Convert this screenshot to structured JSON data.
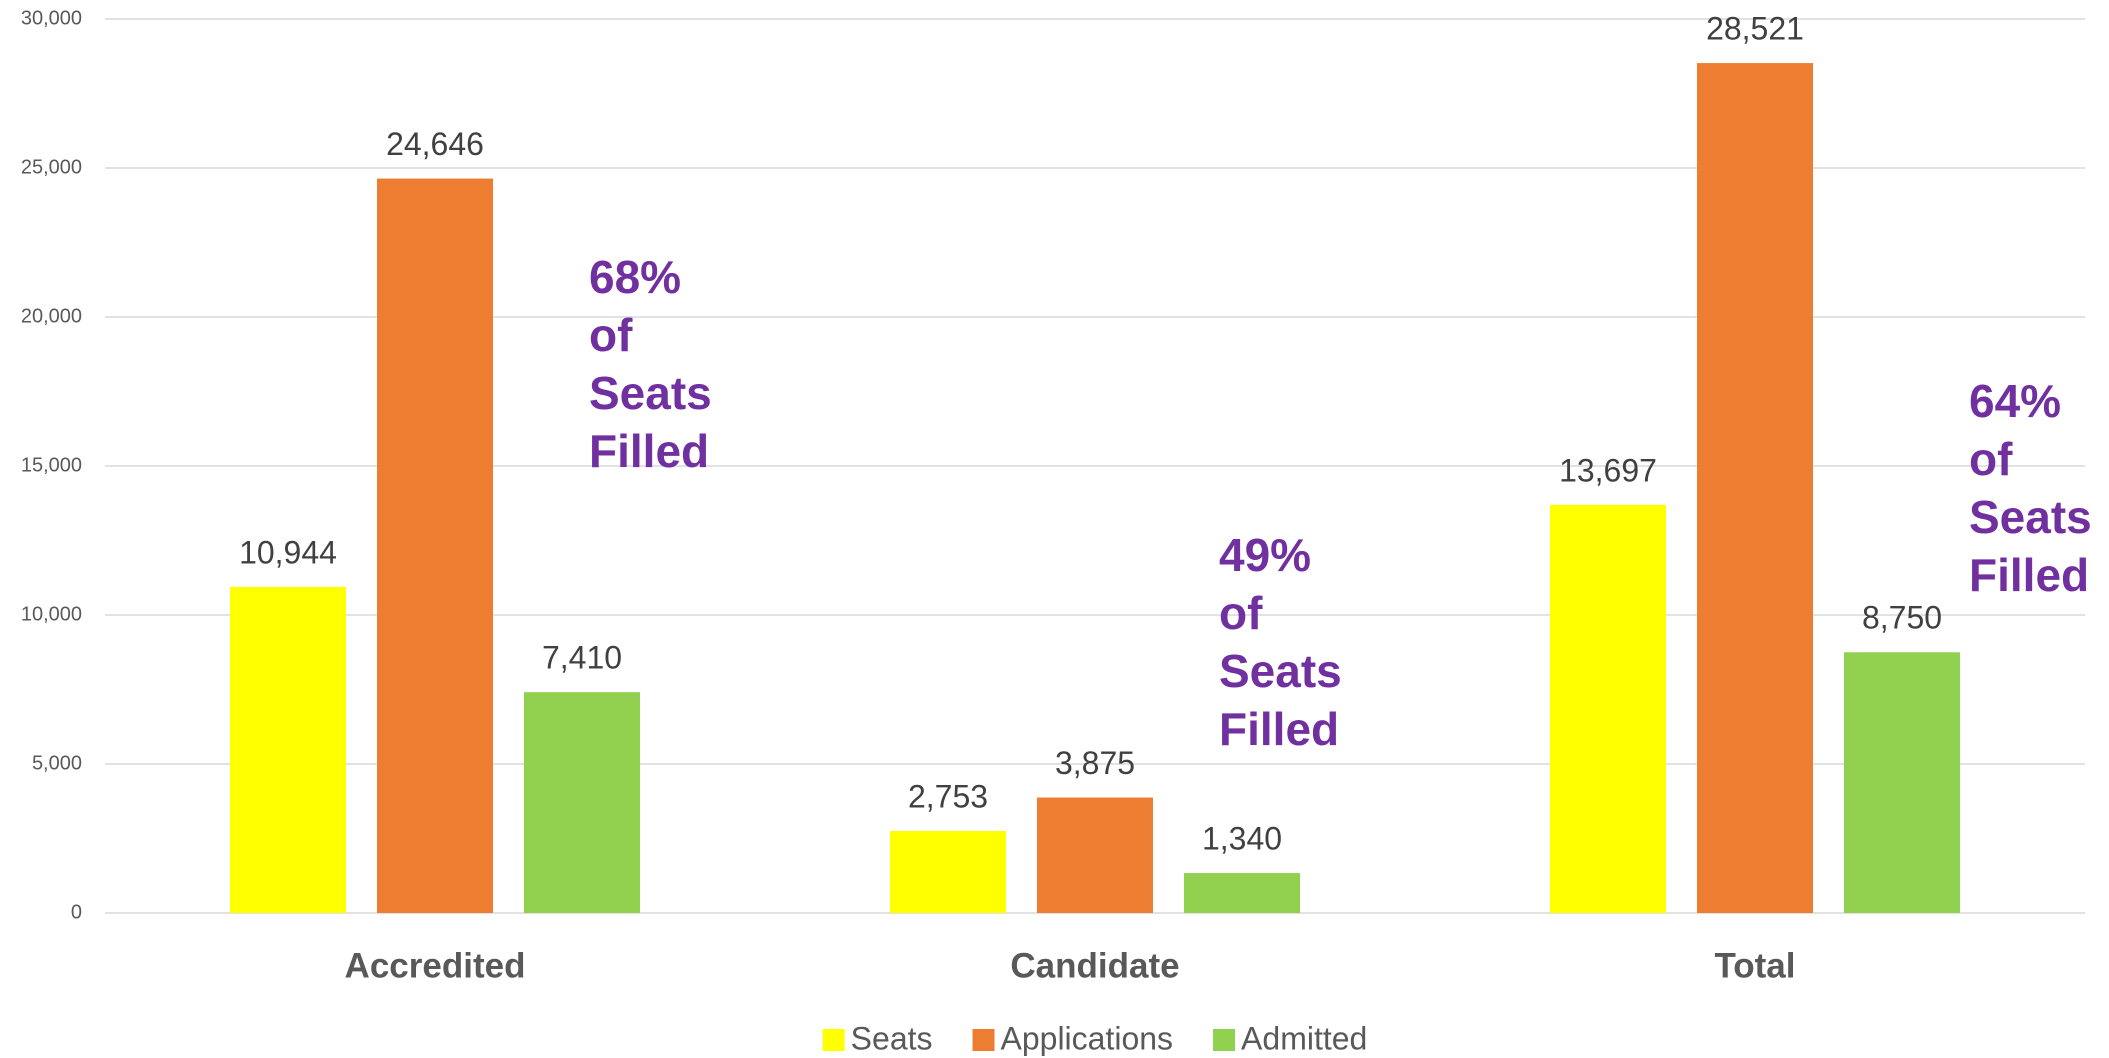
{
  "chart_data": {
    "type": "bar",
    "categories": [
      "Accredited",
      "Candidate",
      "Total"
    ],
    "series": [
      {
        "name": "Seats",
        "color": "#ffff00",
        "values": [
          10944,
          2753,
          13697
        ],
        "value_labels": [
          "10,944",
          "2,753",
          "13,697"
        ]
      },
      {
        "name": "Applications",
        "color": "#ed7d31",
        "values": [
          24646,
          3875,
          28521
        ],
        "value_labels": [
          "24,646",
          "3,875",
          "28,521"
        ]
      },
      {
        "name": "Admitted",
        "color": "#92d050",
        "values": [
          7410,
          1340,
          8750
        ],
        "value_labels": [
          "7,410",
          "1,340",
          "8,750"
        ]
      }
    ],
    "annotations": [
      "68% of Seats Filled",
      "49% of Seats Filled",
      "64% of Seats Filled"
    ],
    "ylim": [
      0,
      30000
    ],
    "yticks": [
      0,
      {
        "value": 5000,
        "label": "5,000"
      },
      {
        "value": 10000,
        "label": "10,000"
      },
      {
        "value": 15000,
        "label": "15,000"
      },
      {
        "value": 20000,
        "label": "20,000"
      },
      {
        "value": 25000,
        "label": "25,000"
      },
      {
        "value": 30000,
        "label": "30,000"
      }
    ],
    "grid": true,
    "legend": "bottom"
  }
}
